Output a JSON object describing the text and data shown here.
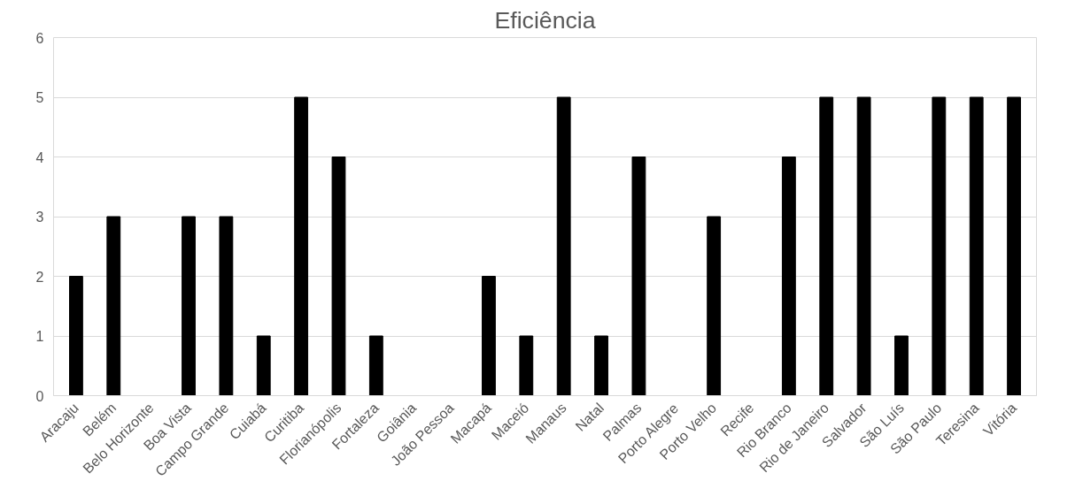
{
  "chart_data": {
    "type": "bar",
    "title": "Eficiência",
    "categories": [
      "Aracaju",
      "Belém",
      "Belo Horizonte",
      "Boa Vista",
      "Campo Grande",
      "Cuiabá",
      "Curitiba",
      "Florianópolis",
      "Fortaleza",
      "Goiânia",
      "João Pessoa",
      "Macapá",
      "Maceió",
      "Manaus",
      "Natal",
      "Palmas",
      "Porto Alegre",
      "Porto Velho",
      "Recife",
      "Rio Branco",
      "Rio de Janeiro",
      "Salvador",
      "São Luís",
      "São Paulo",
      "Teresina",
      "Vitória"
    ],
    "values": [
      2,
      3,
      0,
      3,
      3,
      1,
      5,
      4,
      1,
      0,
      0,
      2,
      1,
      5,
      1,
      4,
      0,
      3,
      0,
      4,
      5,
      5,
      1,
      5,
      5,
      5
    ],
    "color": "#000000",
    "ylim": [
      0,
      6
    ],
    "yticks": [
      0,
      1,
      2,
      3,
      4,
      5,
      6
    ],
    "grid": "y"
  }
}
